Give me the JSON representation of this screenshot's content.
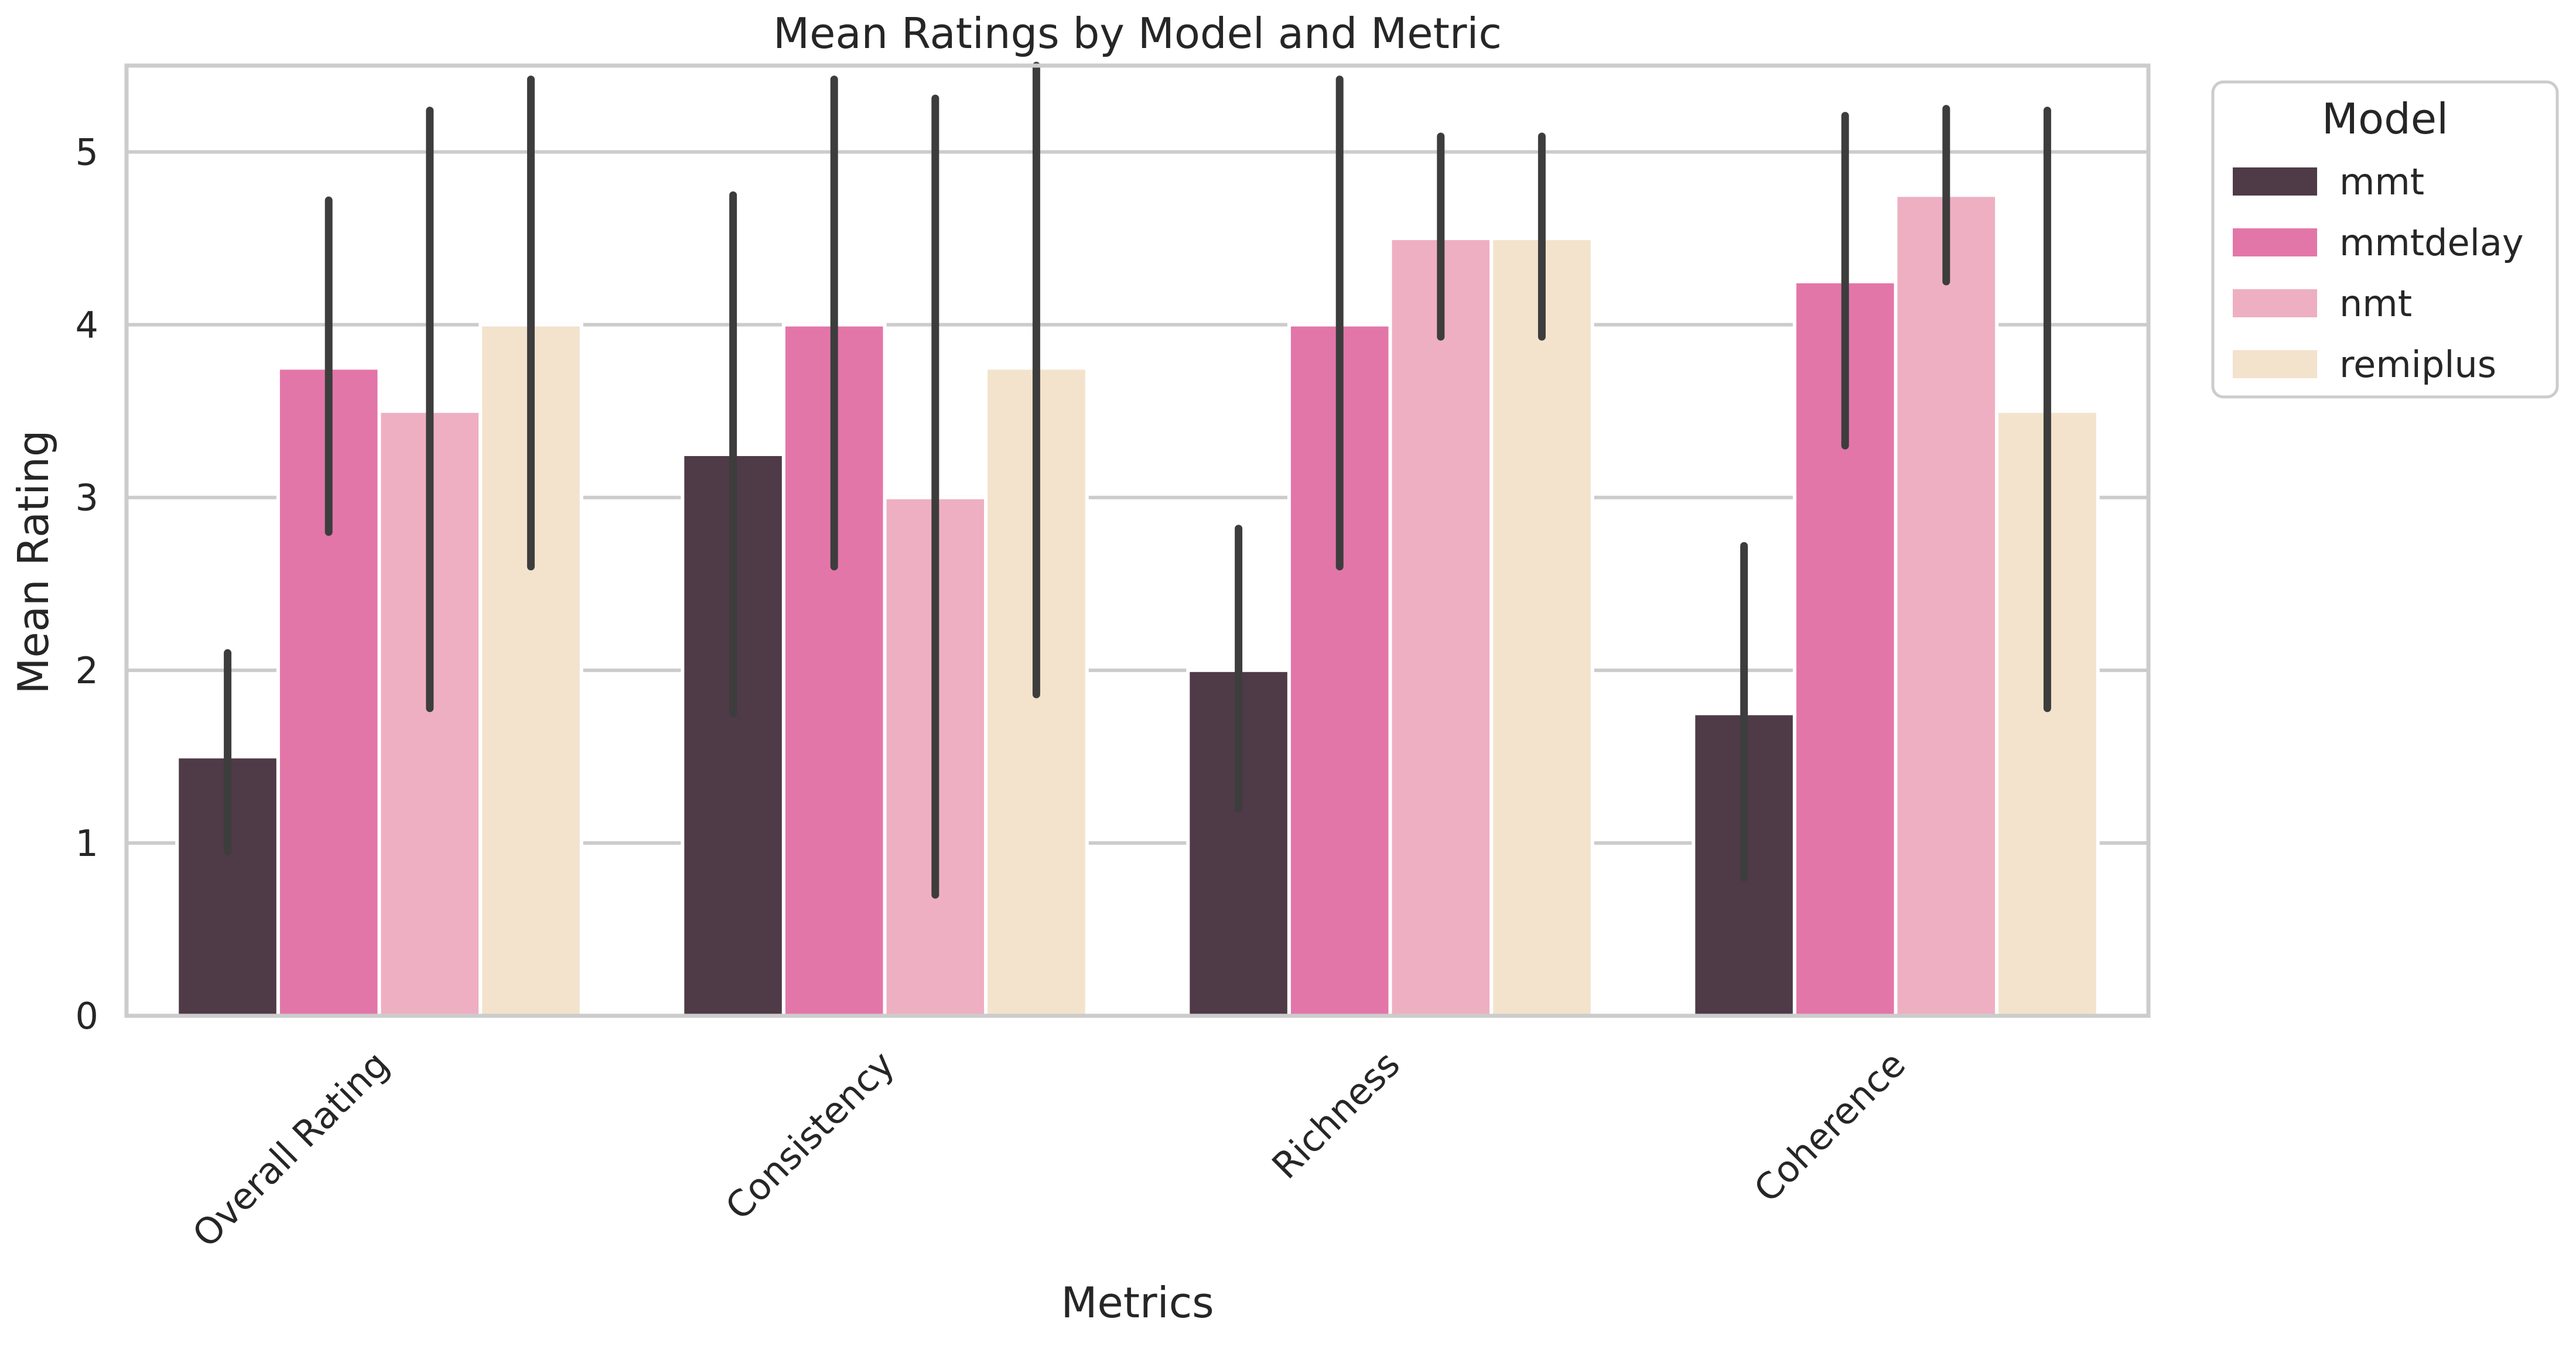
{
  "chart_data": {
    "type": "bar",
    "title": "Mean Ratings by Model and Metric",
    "xlabel": "Metrics",
    "ylabel": "Mean Rating",
    "categories": [
      "Overall Rating",
      "Consistency",
      "Richness",
      "Coherence"
    ],
    "y_ticks": [
      "0",
      "1",
      "2",
      "3",
      "4",
      "5"
    ],
    "ylim": [
      0,
      5.5
    ],
    "grid": "horizontal",
    "legend_title": "Model",
    "legend_position": "outside-top-right",
    "series": [
      {
        "name": "mmt",
        "color": "#4f3a48",
        "values": [
          1.5,
          3.25,
          2.0,
          1.75
        ],
        "error_low": [
          0.95,
          1.75,
          1.2,
          0.8
        ],
        "error_high": [
          2.1,
          4.75,
          2.82,
          2.72
        ]
      },
      {
        "name": "mmtdelay",
        "color": "#e376a8",
        "values": [
          3.75,
          4.0,
          4.0,
          4.25
        ],
        "error_low": [
          2.8,
          2.6,
          2.6,
          3.3
        ],
        "error_high": [
          4.72,
          5.42,
          5.42,
          5.21
        ]
      },
      {
        "name": "nmt",
        "color": "#eeafc2",
        "values": [
          3.5,
          3.0,
          4.5,
          4.75
        ],
        "error_low": [
          1.78,
          0.7,
          3.93,
          4.25
        ],
        "error_high": [
          5.24,
          5.31,
          5.09,
          5.25
        ]
      },
      {
        "name": "remiplus",
        "color": "#f3e3cd",
        "values": [
          4.0,
          3.75,
          4.5,
          3.5
        ],
        "error_low": [
          2.6,
          1.86,
          3.93,
          1.78
        ],
        "error_high": [
          5.42,
          5.5,
          5.09,
          5.24
        ]
      }
    ]
  }
}
